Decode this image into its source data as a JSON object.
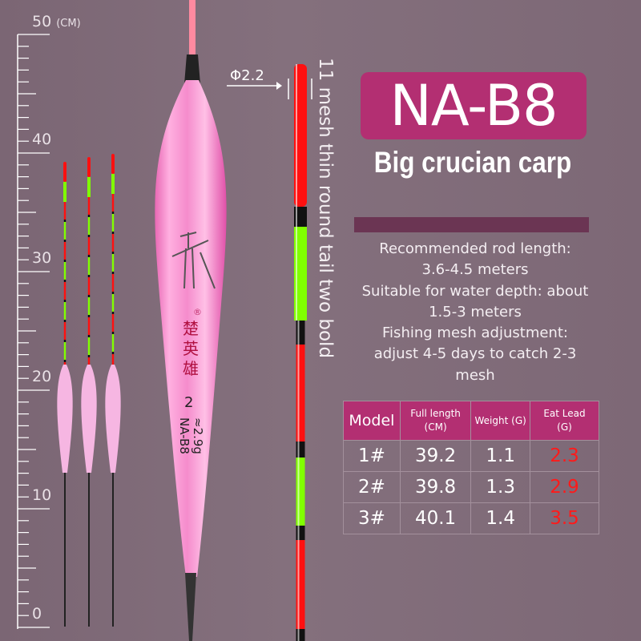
{
  "ruler": {
    "unit": "(CM)",
    "labels": [
      "50",
      "40",
      "30",
      "20",
      "10",
      "0"
    ]
  },
  "big_float": {
    "brand_mark": "®",
    "brand_chinese": "楚英雄",
    "size_number": "2",
    "weight_text": "≈2.9g",
    "model_text": "NA-B8"
  },
  "tip": {
    "diameter_label": "Φ2.2",
    "description": "11 mesh thin round tail two bold"
  },
  "title": "NA-B8",
  "subtitle": "Big crucian carp",
  "specs": [
    "Recommended rod length:",
    "3.6-4.5 meters",
    "Suitable for water depth: about",
    "1.5-3 meters",
    "Fishing mesh adjustment:",
    "adjust 4-5 days to catch 2-3",
    "mesh"
  ],
  "table": {
    "headers": [
      "Model",
      "Full length (CM)",
      "Weight (G)",
      "Eat Lead (G)"
    ],
    "rows": [
      [
        "1#",
        "39.2",
        "1.1",
        "2.3"
      ],
      [
        "2#",
        "39.8",
        "1.3",
        "2.9"
      ],
      [
        "3#",
        "40.1",
        "1.4",
        "3.5"
      ]
    ]
  },
  "colors": {
    "background": "#7f6a78",
    "accent": "#b32f72",
    "lead_value": "#ff1a1a",
    "float_body": "#f27fc4",
    "tip_red": "#ff1010",
    "tip_green": "#80ff00"
  }
}
